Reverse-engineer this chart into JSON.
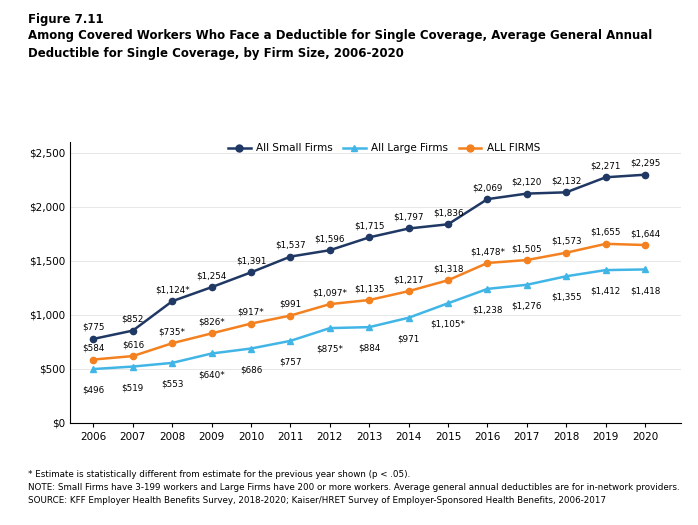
{
  "years": [
    2006,
    2007,
    2008,
    2009,
    2010,
    2011,
    2012,
    2013,
    2014,
    2015,
    2016,
    2017,
    2018,
    2019,
    2020
  ],
  "small_firms": [
    775,
    852,
    1124,
    1254,
    1391,
    1537,
    1596,
    1715,
    1797,
    1836,
    2069,
    2120,
    2132,
    2271,
    2295
  ],
  "large_firms": [
    496,
    519,
    553,
    640,
    686,
    757,
    875,
    884,
    971,
    1105,
    1238,
    1276,
    1355,
    1412,
    1418
  ],
  "all_firms": [
    584,
    616,
    735,
    826,
    917,
    991,
    1097,
    1135,
    1217,
    1318,
    1478,
    1505,
    1573,
    1655,
    1644
  ],
  "small_firms_labels": [
    "$775",
    "$852",
    "$1,124*",
    "$1,254",
    "$1,391",
    "$1,537",
    "$1,596",
    "$1,715",
    "$1,797",
    "$1,836",
    "$2,069",
    "$2,120",
    "$2,132",
    "$2,271",
    "$2,295"
  ],
  "large_firms_labels": [
    "$496",
    "$519",
    "$553",
    "$640*",
    "$686",
    "$757",
    "$875*",
    "$884",
    "$971",
    "$1,105*",
    "$1,238",
    "$1,276",
    "$1,355",
    "$1,412",
    "$1,418"
  ],
  "all_firms_labels": [
    "$584",
    "$616",
    "$735*",
    "$826*",
    "$917*",
    "$991",
    "$1,097*",
    "$1,135",
    "$1,217",
    "$1,318",
    "$1,478*",
    "$1,505",
    "$1,573",
    "$1,655",
    "$1,644"
  ],
  "small_firms_color": "#1f3864",
  "large_firms_color": "#41b6e6",
  "all_firms_color": "#f4811f",
  "figure_label": "Figure 7.11",
  "title_line1": "Among Covered Workers Who Face a Deductible for Single Coverage, Average General Annual",
  "title_line2": "Deductible for Single Coverage, by Firm Size, 2006-2020",
  "legend_labels": [
    "All Small Firms",
    "All Large Firms",
    "ALL FIRMS"
  ],
  "ylim": [
    0,
    2600
  ],
  "yticks": [
    0,
    500,
    1000,
    1500,
    2000,
    2500
  ],
  "ytick_labels": [
    "$0",
    "$500",
    "$1,000",
    "$1,500",
    "$2,000",
    "$2,500"
  ],
  "footnote1": "* Estimate is statistically different from estimate for the previous year shown (p < .05).",
  "footnote2": "NOTE: Small Firms have 3-199 workers and Large Firms have 200 or more workers. Average general annual deductibles are for in-network providers.",
  "footnote3": "SOURCE: KFF Employer Health Benefits Survey, 2018-2020; Kaiser/HRET Survey of Employer-Sponsored Health Benefits, 2006-2017"
}
